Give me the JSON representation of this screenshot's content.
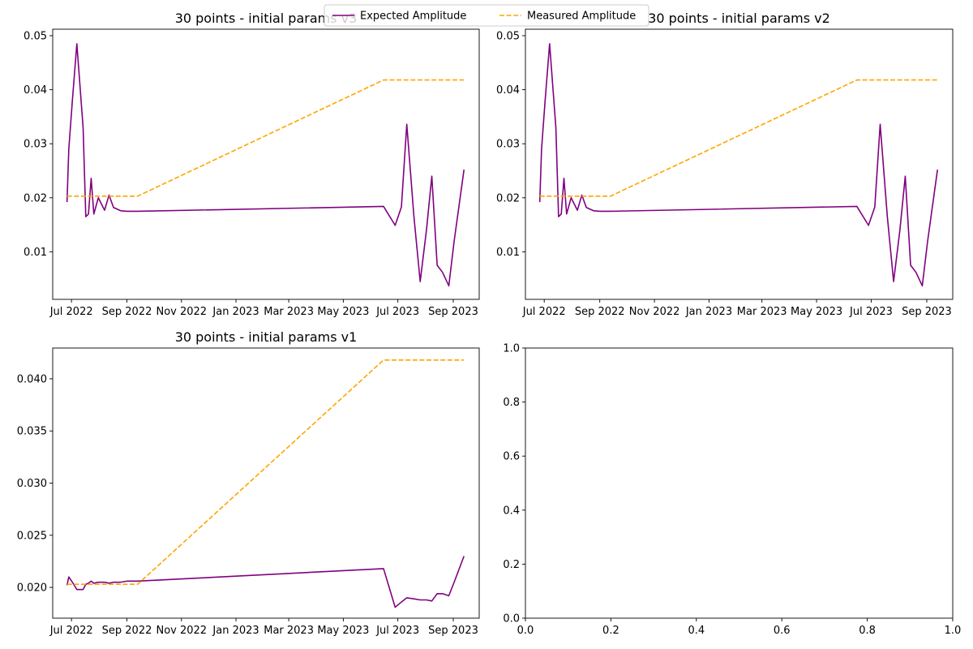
{
  "legend": {
    "entries": [
      {
        "name": "Expected Amplitude",
        "color": "#800080",
        "style": "solid"
      },
      {
        "name": "Measured Amplitude",
        "color": "#ffa500",
        "style": "dashed"
      }
    ],
    "placement": "top-center"
  },
  "chart_data": [
    {
      "type": "line",
      "title": "30 points - initial params v3",
      "x_type": "date",
      "xlim": [
        "2022-06-10",
        "2023-09-30"
      ],
      "ylim": [
        0.0012,
        0.0512
      ],
      "x_ticks": [
        "2022-07-01",
        "2022-09-01",
        "2022-11-01",
        "2023-01-01",
        "2023-03-01",
        "2023-05-01",
        "2023-07-01",
        "2023-09-01"
      ],
      "x_tick_labels": [
        "Jul 2022",
        "Sep 2022",
        "Nov 2022",
        "Jan 2023",
        "Mar 2023",
        "May 2023",
        "Jul 2023",
        "Sep 2023"
      ],
      "y_ticks": [
        0.01,
        0.02,
        0.03,
        0.04,
        0.05
      ],
      "y_tick_labels": [
        "0.01",
        "0.02",
        "0.03",
        "0.04",
        "0.05"
      ],
      "grid": false,
      "series": [
        {
          "name": "Expected Amplitude",
          "color": "#800080",
          "style": "solid",
          "x": [
            "2022-06-26",
            "2022-06-28",
            "2022-07-02",
            "2022-07-07",
            "2022-07-14",
            "2022-07-17",
            "2022-07-20",
            "2022-07-23",
            "2022-07-26",
            "2022-07-31",
            "2022-08-07",
            "2022-08-12",
            "2022-08-17",
            "2022-08-25",
            "2022-09-01",
            "2022-09-07",
            "2022-09-13",
            "2023-06-15",
            "2023-06-28",
            "2023-07-05",
            "2023-07-11",
            "2023-07-19",
            "2023-07-26",
            "2023-08-02",
            "2023-08-08",
            "2023-08-14",
            "2023-08-20",
            "2023-08-27",
            "2023-09-02",
            "2023-09-13"
          ],
          "y": [
            0.0192,
            0.029,
            0.038,
            0.0485,
            0.033,
            0.0165,
            0.017,
            0.0236,
            0.017,
            0.02,
            0.0177,
            0.0205,
            0.0182,
            0.0176,
            0.0175,
            0.0175,
            0.0175,
            0.0184,
            0.0149,
            0.0183,
            0.0336,
            0.0165,
            0.0045,
            0.014,
            0.024,
            0.0075,
            0.0062,
            0.0037,
            0.012,
            0.0252
          ]
        },
        {
          "name": "Measured Amplitude",
          "color": "#ffa500",
          "style": "dashed",
          "x": [
            "2022-06-26",
            "2022-09-13",
            "2023-06-15",
            "2023-09-13"
          ],
          "y": [
            0.0203,
            0.0203,
            0.0418,
            0.0418
          ]
        }
      ]
    },
    {
      "type": "line",
      "title": "30 points - initial params v2",
      "x_type": "date",
      "xlim": [
        "2022-06-10",
        "2023-09-30"
      ],
      "ylim": [
        0.0012,
        0.0512
      ],
      "x_ticks": [
        "2022-07-01",
        "2022-09-01",
        "2022-11-01",
        "2023-01-01",
        "2023-03-01",
        "2023-05-01",
        "2023-07-01",
        "2023-09-01"
      ],
      "x_tick_labels": [
        "Jul 2022",
        "Sep 2022",
        "Nov 2022",
        "Jan 2023",
        "Mar 2023",
        "May 2023",
        "Jul 2023",
        "Sep 2023"
      ],
      "y_ticks": [
        0.01,
        0.02,
        0.03,
        0.04,
        0.05
      ],
      "y_tick_labels": [
        "0.01",
        "0.02",
        "0.03",
        "0.04",
        "0.05"
      ],
      "grid": false,
      "series": [
        {
          "name": "Expected Amplitude",
          "color": "#800080",
          "style": "solid",
          "x": [
            "2022-06-26",
            "2022-06-28",
            "2022-07-02",
            "2022-07-07",
            "2022-07-14",
            "2022-07-17",
            "2022-07-20",
            "2022-07-23",
            "2022-07-26",
            "2022-07-31",
            "2022-08-07",
            "2022-08-12",
            "2022-08-17",
            "2022-08-25",
            "2022-09-01",
            "2022-09-07",
            "2022-09-13",
            "2023-06-15",
            "2023-06-28",
            "2023-07-05",
            "2023-07-11",
            "2023-07-19",
            "2023-07-26",
            "2023-08-02",
            "2023-08-08",
            "2023-08-14",
            "2023-08-20",
            "2023-08-27",
            "2023-09-02",
            "2023-09-13"
          ],
          "y": [
            0.0192,
            0.029,
            0.038,
            0.0485,
            0.033,
            0.0165,
            0.017,
            0.0236,
            0.017,
            0.02,
            0.0177,
            0.0205,
            0.0182,
            0.0176,
            0.0175,
            0.0175,
            0.0175,
            0.0184,
            0.0149,
            0.0183,
            0.0336,
            0.0165,
            0.0045,
            0.014,
            0.024,
            0.0075,
            0.0062,
            0.0037,
            0.012,
            0.0252
          ]
        },
        {
          "name": "Measured Amplitude",
          "color": "#ffa500",
          "style": "dashed",
          "x": [
            "2022-06-26",
            "2022-09-13",
            "2023-06-15",
            "2023-09-13"
          ],
          "y": [
            0.0203,
            0.0203,
            0.0418,
            0.0418
          ]
        }
      ]
    },
    {
      "type": "line",
      "title": "30 points - initial params v1",
      "x_type": "date",
      "xlim": [
        "2022-06-10",
        "2023-09-30"
      ],
      "ylim": [
        0.01705,
        0.04295
      ],
      "x_ticks": [
        "2022-07-01",
        "2022-09-01",
        "2022-11-01",
        "2023-01-01",
        "2023-03-01",
        "2023-05-01",
        "2023-07-01",
        "2023-09-01"
      ],
      "x_tick_labels": [
        "Jul 2022",
        "Sep 2022",
        "Nov 2022",
        "Jan 2023",
        "Mar 2023",
        "May 2023",
        "Jul 2023",
        "Sep 2023"
      ],
      "y_ticks": [
        0.02,
        0.025,
        0.03,
        0.035,
        0.04
      ],
      "y_tick_labels": [
        "0.020",
        "0.025",
        "0.030",
        "0.035",
        "0.040"
      ],
      "grid": false,
      "series": [
        {
          "name": "Expected Amplitude",
          "color": "#800080",
          "style": "solid",
          "x": [
            "2022-06-26",
            "2022-06-28",
            "2022-07-02",
            "2022-07-07",
            "2022-07-14",
            "2022-07-17",
            "2022-07-20",
            "2022-07-23",
            "2022-07-26",
            "2022-07-31",
            "2022-08-07",
            "2022-08-12",
            "2022-08-17",
            "2022-08-25",
            "2022-09-01",
            "2022-09-07",
            "2022-09-13",
            "2023-06-15",
            "2023-06-28",
            "2023-07-05",
            "2023-07-11",
            "2023-07-19",
            "2023-07-26",
            "2023-08-02",
            "2023-08-08",
            "2023-08-14",
            "2023-08-20",
            "2023-08-27",
            "2023-09-02",
            "2023-09-13"
          ],
          "y": [
            0.0202,
            0.021,
            0.0205,
            0.0198,
            0.0198,
            0.0203,
            0.0204,
            0.0206,
            0.0204,
            0.0205,
            0.0205,
            0.0204,
            0.0205,
            0.0205,
            0.0206,
            0.0206,
            0.0206,
            0.0218,
            0.0181,
            0.0186,
            0.019,
            0.0189,
            0.0188,
            0.0188,
            0.0187,
            0.0194,
            0.0194,
            0.0192,
            0.0205,
            0.023
          ]
        },
        {
          "name": "Measured Amplitude",
          "color": "#ffa500",
          "style": "dashed",
          "x": [
            "2022-06-26",
            "2022-09-13",
            "2023-06-15",
            "2023-09-13"
          ],
          "y": [
            0.0203,
            0.0203,
            0.0418,
            0.0418
          ]
        }
      ]
    },
    {
      "type": "line",
      "title": "",
      "x_type": "numeric",
      "xlim": [
        0,
        1
      ],
      "ylim": [
        0,
        1
      ],
      "x_ticks": [
        0.0,
        0.2,
        0.4,
        0.6,
        0.8,
        1.0
      ],
      "x_tick_labels": [
        "0.0",
        "0.2",
        "0.4",
        "0.6",
        "0.8",
        "1.0"
      ],
      "y_ticks": [
        0.0,
        0.2,
        0.4,
        0.6,
        0.8,
        1.0
      ],
      "y_tick_labels": [
        "0.0",
        "0.2",
        "0.4",
        "0.6",
        "0.8",
        "1.0"
      ],
      "grid": false,
      "series": []
    }
  ]
}
